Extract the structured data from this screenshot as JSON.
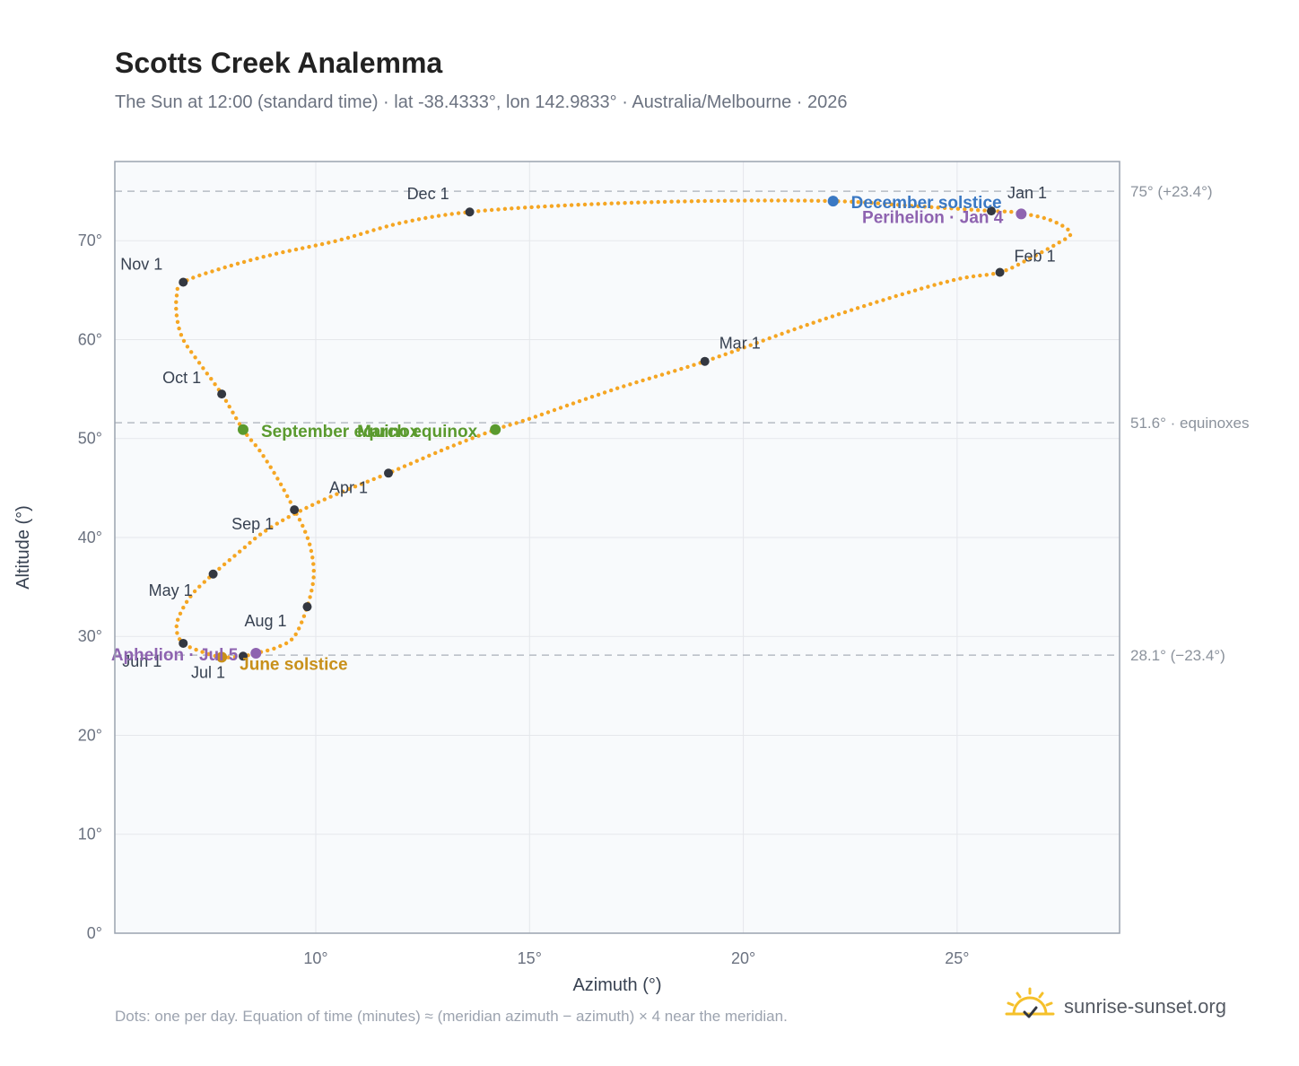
{
  "title": "Scotts Creek Analemma",
  "subtitle": "The Sun at 12:00 (standard time) · lat -38.4333°, lon 142.9833° · Australia/Melbourne · 2026",
  "footnote": "Dots: one per day. Equation of time (minutes) ≈ (meridian azimuth − azimuth) × 4 near the meridian.",
  "brand": {
    "name": "sunrise-sunset.org",
    "icon": "sun-logo-icon"
  },
  "colors": {
    "curve": "#f5a623",
    "month_dot": "#333740",
    "december_solstice": "#3a78c3",
    "june_solstice": "#c8901a",
    "equinox": "#5a9a2e",
    "perihelion_aphelion": "#8e63b0",
    "plot_bg": "#f8fafc",
    "grid": "#e5e7eb",
    "reference_line": "#b6bcc4"
  },
  "chart_data": {
    "type": "scatter",
    "xlabel": "Azimuth (°)",
    "ylabel": "Altitude (°)",
    "xlim": [
      5.3,
      28.8
    ],
    "ylim": [
      0,
      78
    ],
    "x_ticks": [
      10,
      15,
      20,
      25
    ],
    "x_tick_labels": [
      "10°",
      "15°",
      "20°",
      "25°"
    ],
    "y_ticks": [
      0,
      10,
      20,
      30,
      40,
      50,
      60,
      70
    ],
    "y_tick_labels": [
      "0°",
      "10°",
      "20°",
      "30°",
      "40°",
      "50°",
      "60°",
      "70°"
    ],
    "grid": true,
    "reference_lines": [
      {
        "y": 75.0,
        "label": "75° (+23.4°)"
      },
      {
        "y": 51.6,
        "label": "51.6° · equinoxes"
      },
      {
        "y": 28.1,
        "label": "28.1° (−23.4°)"
      }
    ],
    "month_markers": [
      {
        "label": "Jan 1",
        "az": 25.8,
        "alt": 73.0
      },
      {
        "label": "Feb 1",
        "az": 26.0,
        "alt": 66.8
      },
      {
        "label": "Mar 1",
        "az": 19.1,
        "alt": 57.8
      },
      {
        "label": "Apr 1",
        "az": 11.7,
        "alt": 46.5
      },
      {
        "label": "May 1",
        "az": 7.6,
        "alt": 36.3
      },
      {
        "label": "Jun 1",
        "az": 6.9,
        "alt": 29.3
      },
      {
        "label": "Jul 1",
        "az": 8.3,
        "alt": 28.0
      },
      {
        "label": "Aug 1",
        "az": 9.8,
        "alt": 33.0
      },
      {
        "label": "Sep 1",
        "az": 9.5,
        "alt": 42.8
      },
      {
        "label": "Oct 1",
        "az": 7.8,
        "alt": 54.5
      },
      {
        "label": "Nov 1",
        "az": 6.9,
        "alt": 65.8
      },
      {
        "label": "Dec 1",
        "az": 13.6,
        "alt": 72.9
      }
    ],
    "events": [
      {
        "label": "December solstice",
        "az": 22.1,
        "alt": 74.0,
        "kind": "december_solstice"
      },
      {
        "label": "Perihelion · Jan 4",
        "az": 26.5,
        "alt": 72.7,
        "kind": "perihelion_aphelion"
      },
      {
        "label": "March equinox",
        "az": 14.2,
        "alt": 50.9,
        "kind": "equinox"
      },
      {
        "label": "September equinox",
        "az": 8.3,
        "alt": 50.9,
        "kind": "equinox"
      },
      {
        "label": "June solstice",
        "az": 7.8,
        "alt": 27.9,
        "kind": "june_solstice"
      },
      {
        "label": "Aphelion · Jul 5",
        "az": 8.6,
        "alt": 28.3,
        "kind": "perihelion_aphelion"
      }
    ],
    "curve_points": [
      [
        25.8,
        73.0
      ],
      [
        26.3,
        72.9
      ],
      [
        26.6,
        72.7
      ],
      [
        27.1,
        72.2
      ],
      [
        27.5,
        71.4
      ],
      [
        27.65,
        70.6
      ],
      [
        27.3,
        69.6
      ],
      [
        26.7,
        68.2
      ],
      [
        26.0,
        66.8
      ],
      [
        25.0,
        66.1
      ],
      [
        23.5,
        64.3
      ],
      [
        21.5,
        61.5
      ],
      [
        19.1,
        57.8
      ],
      [
        17.0,
        55.0
      ],
      [
        15.0,
        52.0
      ],
      [
        14.2,
        50.9
      ],
      [
        13.0,
        48.9
      ],
      [
        11.7,
        46.5
      ],
      [
        10.5,
        44.4
      ],
      [
        9.6,
        42.6
      ],
      [
        8.8,
        40.6
      ],
      [
        8.2,
        38.5
      ],
      [
        7.6,
        36.3
      ],
      [
        7.1,
        34.2
      ],
      [
        6.8,
        32.0
      ],
      [
        6.75,
        30.5
      ],
      [
        6.9,
        29.3
      ],
      [
        7.3,
        28.5
      ],
      [
        7.8,
        27.9
      ],
      [
        8.3,
        28.0
      ],
      [
        8.6,
        28.3
      ],
      [
        9.1,
        28.9
      ],
      [
        9.5,
        30.0
      ],
      [
        9.8,
        33.0
      ],
      [
        9.95,
        36.0
      ],
      [
        9.9,
        38.5
      ],
      [
        9.75,
        40.6
      ],
      [
        9.5,
        42.8
      ],
      [
        9.1,
        46.0
      ],
      [
        8.7,
        48.7
      ],
      [
        8.3,
        50.9
      ],
      [
        7.8,
        54.5
      ],
      [
        7.3,
        57.5
      ],
      [
        6.9,
        60.0
      ],
      [
        6.75,
        62.3
      ],
      [
        6.75,
        64.5
      ],
      [
        6.9,
        65.8
      ],
      [
        7.8,
        67.2
      ],
      [
        9.0,
        68.6
      ],
      [
        10.5,
        70.0
      ],
      [
        12.0,
        71.8
      ],
      [
        13.6,
        72.9
      ],
      [
        16.0,
        73.6
      ],
      [
        19.0,
        74.0
      ],
      [
        22.1,
        74.0
      ],
      [
        24.0,
        73.5
      ],
      [
        25.8,
        73.0
      ]
    ]
  }
}
